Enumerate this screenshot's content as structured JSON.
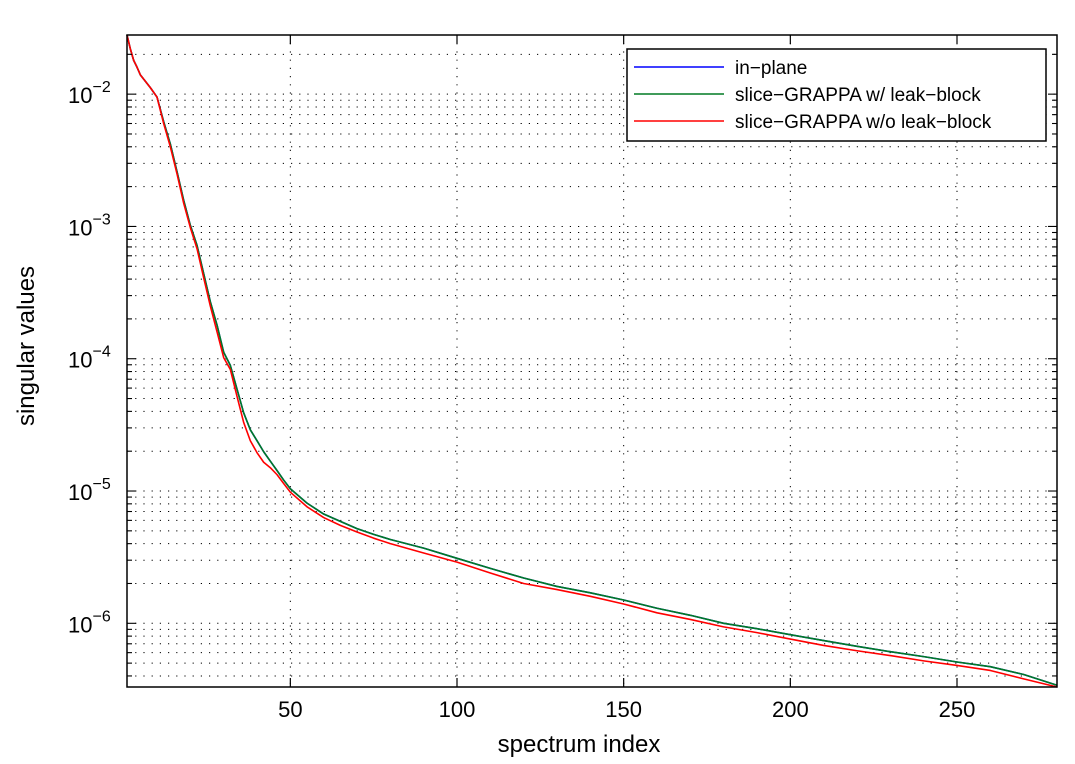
{
  "chart_data": {
    "type": "line",
    "title": "",
    "xlabel": "spectrum index",
    "ylabel": "singular values",
    "xscale": "linear",
    "yscale": "log",
    "xlim": [
      1,
      280
    ],
    "ylim": [
      3.3e-07,
      0.028
    ],
    "grid": true,
    "legend_position": "top-right",
    "x_ticks": [
      {
        "value": 50,
        "label": "50"
      },
      {
        "value": 100,
        "label": "100"
      },
      {
        "value": 150,
        "label": "150"
      },
      {
        "value": 200,
        "label": "200"
      },
      {
        "value": 250,
        "label": "250"
      }
    ],
    "y_ticks": [
      {
        "value": 0.01,
        "base": "10",
        "exp": "−2"
      },
      {
        "value": 0.001,
        "base": "10",
        "exp": "−3"
      },
      {
        "value": 0.0001,
        "base": "10",
        "exp": "−4"
      },
      {
        "value": 1e-05,
        "base": "10",
        "exp": "−5"
      },
      {
        "value": 1e-06,
        "base": "10",
        "exp": "−6"
      }
    ],
    "series": [
      {
        "name": "in−plane",
        "color": "#0000ff",
        "x": [
          1,
          2,
          3,
          4,
          5,
          6,
          8,
          10,
          12,
          14,
          16,
          18,
          20,
          22,
          24,
          26,
          28,
          30,
          32,
          34,
          36,
          38,
          40,
          42,
          44,
          46,
          48,
          50,
          55,
          60,
          65,
          70,
          75,
          80,
          90,
          100,
          110,
          120,
          130,
          140,
          150,
          160,
          170,
          180,
          190,
          200,
          210,
          220,
          230,
          240,
          250,
          260,
          270,
          280
        ],
        "y": [
          0.028,
          0.022,
          0.018,
          0.016,
          0.014,
          0.013,
          0.0112,
          0.0095,
          0.0062,
          0.0042,
          0.0026,
          0.00158,
          0.00102,
          0.00072,
          0.00044,
          0.00027,
          0.00018,
          0.000112,
          8.9e-05,
          5.9e-05,
          3.9e-05,
          2.9e-05,
          2.4e-05,
          1.98e-05,
          1.68e-05,
          1.43e-05,
          1.21e-05,
          1.04e-05,
          8.1e-06,
          6.7e-06,
          5.9e-06,
          5.2e-06,
          4.7e-06,
          4.3e-06,
          3.7e-06,
          3.1e-06,
          2.6e-06,
          2.2e-06,
          1.9e-06,
          1.7e-06,
          1.5e-06,
          1.3e-06,
          1.15e-06,
          1e-06,
          9.1e-07,
          8.2e-07,
          7.4e-07,
          6.7e-07,
          6.1e-07,
          5.6e-07,
          5.1e-07,
          4.7e-07,
          4.1e-07,
          3.4e-07
        ]
      },
      {
        "name": "slice−GRAPPA w/ leak−block",
        "color": "#007a24",
        "x": [
          1,
          2,
          3,
          4,
          5,
          6,
          8,
          10,
          12,
          14,
          16,
          18,
          20,
          22,
          24,
          26,
          28,
          30,
          32,
          34,
          36,
          38,
          40,
          42,
          44,
          46,
          48,
          50,
          55,
          60,
          65,
          70,
          75,
          80,
          90,
          100,
          110,
          120,
          130,
          140,
          150,
          160,
          170,
          180,
          190,
          200,
          210,
          220,
          230,
          240,
          250,
          260,
          270,
          280
        ],
        "y": [
          0.028,
          0.022,
          0.018,
          0.016,
          0.014,
          0.013,
          0.0112,
          0.0095,
          0.0062,
          0.0042,
          0.0026,
          0.00158,
          0.00102,
          0.00072,
          0.00044,
          0.00027,
          0.00018,
          0.000112,
          8.9e-05,
          5.9e-05,
          3.9e-05,
          2.9e-05,
          2.4e-05,
          1.98e-05,
          1.68e-05,
          1.43e-05,
          1.21e-05,
          1.04e-05,
          8.1e-06,
          6.7e-06,
          5.9e-06,
          5.2e-06,
          4.7e-06,
          4.3e-06,
          3.7e-06,
          3.1e-06,
          2.6e-06,
          2.2e-06,
          1.9e-06,
          1.7e-06,
          1.5e-06,
          1.3e-06,
          1.15e-06,
          1e-06,
          9.1e-07,
          8.2e-07,
          7.4e-07,
          6.7e-07,
          6.1e-07,
          5.6e-07,
          5.1e-07,
          4.7e-07,
          4.1e-07,
          3.4e-07
        ]
      },
      {
        "name": "slice−GRAPPA w/o leak−block",
        "color": "#ff0000",
        "x": [
          1,
          2,
          3,
          4,
          5,
          6,
          8,
          10,
          12,
          14,
          16,
          18,
          20,
          22,
          24,
          26,
          28,
          30,
          32,
          34,
          36,
          38,
          40,
          42,
          44,
          46,
          48,
          50,
          55,
          60,
          65,
          70,
          75,
          80,
          90,
          100,
          110,
          120,
          130,
          140,
          150,
          160,
          170,
          180,
          190,
          200,
          210,
          220,
          230,
          240,
          250,
          260,
          270,
          280
        ],
        "y": [
          0.028,
          0.022,
          0.018,
          0.016,
          0.014,
          0.013,
          0.0112,
          0.0095,
          0.006,
          0.004,
          0.0025,
          0.0015,
          0.00098,
          0.00068,
          0.00041,
          0.00025,
          0.00016,
          0.000102,
          8.3e-05,
          5.2e-05,
          3.3e-05,
          2.4e-05,
          1.95e-05,
          1.65e-05,
          1.5e-05,
          1.33e-05,
          1.14e-05,
          9.8e-06,
          7.6e-06,
          6.3e-06,
          5.5e-06,
          4.9e-06,
          4.4e-06,
          4e-06,
          3.4e-06,
          2.9e-06,
          2.4e-06,
          2e-06,
          1.8e-06,
          1.6e-06,
          1.4e-06,
          1.2e-06,
          1.07e-06,
          9.4e-07,
          8.5e-07,
          7.6e-07,
          6.8e-07,
          6.2e-07,
          5.7e-07,
          5.2e-07,
          4.8e-07,
          4.4e-07,
          3.8e-07,
          3.3e-07
        ]
      }
    ]
  }
}
